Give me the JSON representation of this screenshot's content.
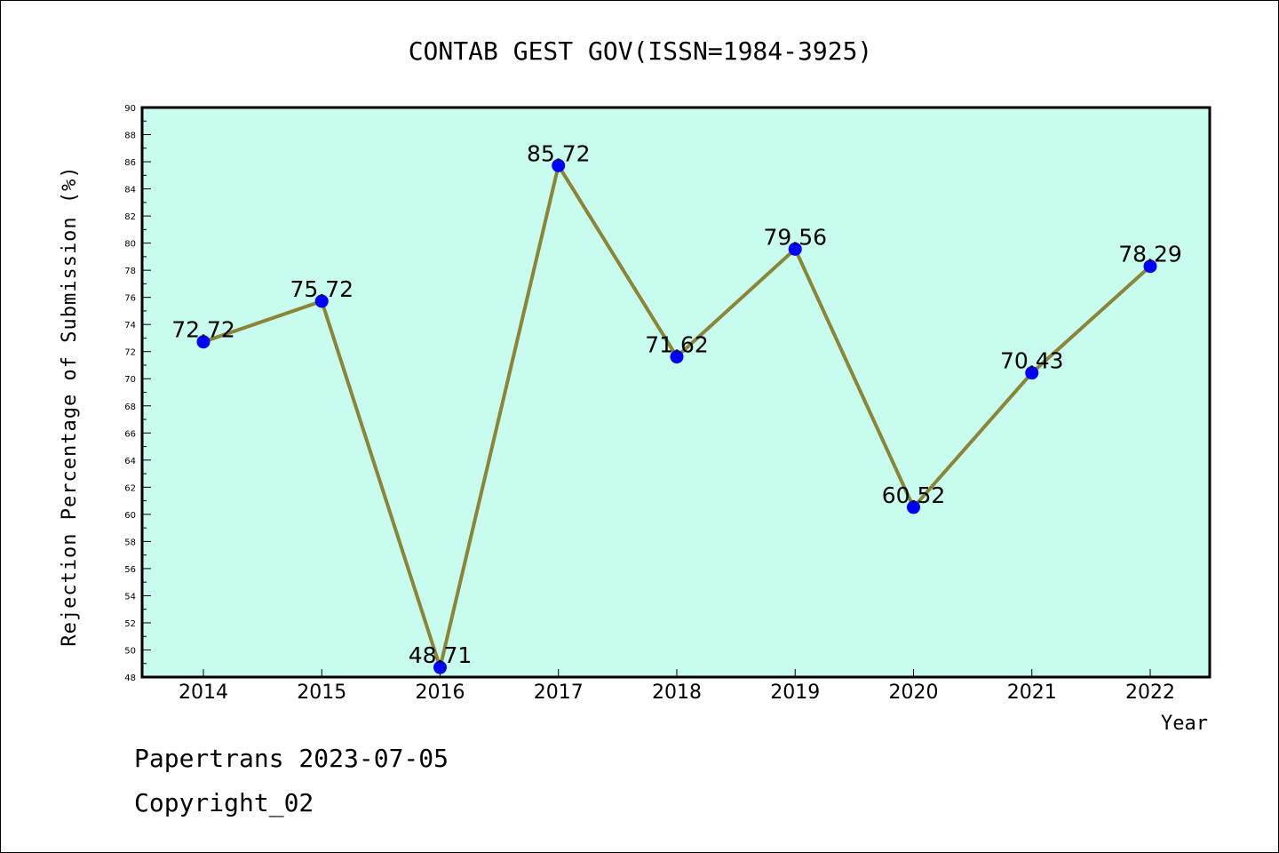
{
  "footer": {
    "line1": "Papertrans 2023-07-05",
    "line2": "Copyright_02"
  },
  "chart_data": {
    "type": "line",
    "title": "CONTAB GEST GOV(ISSN=1984-3925)",
    "xlabel": "Year",
    "ylabel": "Rejection Percentage of Submission (%)",
    "categories": [
      "2014",
      "2015",
      "2016",
      "2017",
      "2018",
      "2019",
      "2020",
      "2021",
      "2022"
    ],
    "series": [
      {
        "values": [
          72.72,
          75.72,
          48.71,
          85.72,
          71.62,
          79.56,
          60.52,
          70.43,
          78.29
        ],
        "labels": [
          "72.72",
          "75.72",
          "48.71",
          "85.72",
          "71.62",
          "79.56",
          "60.52",
          "70.43",
          "78.29"
        ]
      }
    ],
    "ylim": [
      48,
      90
    ],
    "yticks": [
      "48",
      "50",
      "52",
      "54",
      "56",
      "58",
      "60",
      "62",
      "64",
      "66",
      "68",
      "70",
      "72",
      "74",
      "76",
      "78",
      "80",
      "82",
      "84",
      "86",
      "88",
      "90"
    ],
    "grid": false,
    "colors": {
      "plot_background": "#c8fcee",
      "line": "#8b8535",
      "marker": "#0000ff"
    }
  }
}
